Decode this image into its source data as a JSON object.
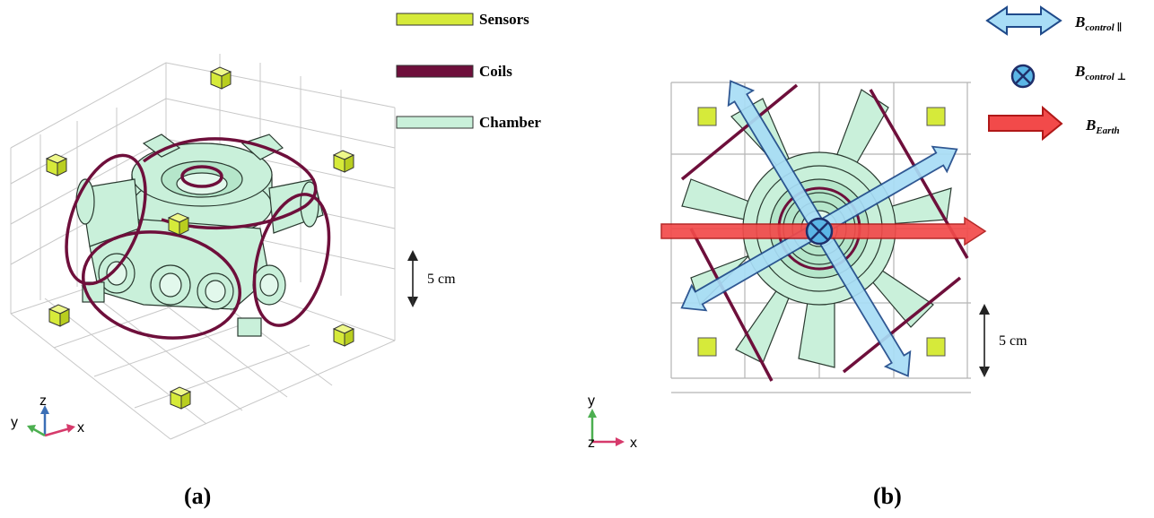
{
  "legend_a": {
    "sensors": "Sensors",
    "coils": "Coils",
    "chamber": "Chamber"
  },
  "colors": {
    "sensor": "#d6ea3a",
    "coil": "#6e0f3b",
    "chamber": "#c9f0da",
    "control_arrow": "#a8ddf6",
    "earth_arrow": "#f24a4a"
  },
  "panel_a": {
    "scale_label": "5 cm",
    "axes": {
      "z": "z",
      "y": "y",
      "x": "x"
    },
    "caption": "(a)"
  },
  "panel_b": {
    "scale_label": "5 cm",
    "axes": {
      "y": "y",
      "z": "z",
      "x": "x"
    },
    "caption": "(b)",
    "legend": {
      "control_parallel": {
        "main": "B",
        "sub": "control ∥"
      },
      "control_perp": {
        "main": "B",
        "sub": "control ⊥"
      },
      "earth": {
        "main": "B",
        "sub": "Earth"
      }
    }
  }
}
